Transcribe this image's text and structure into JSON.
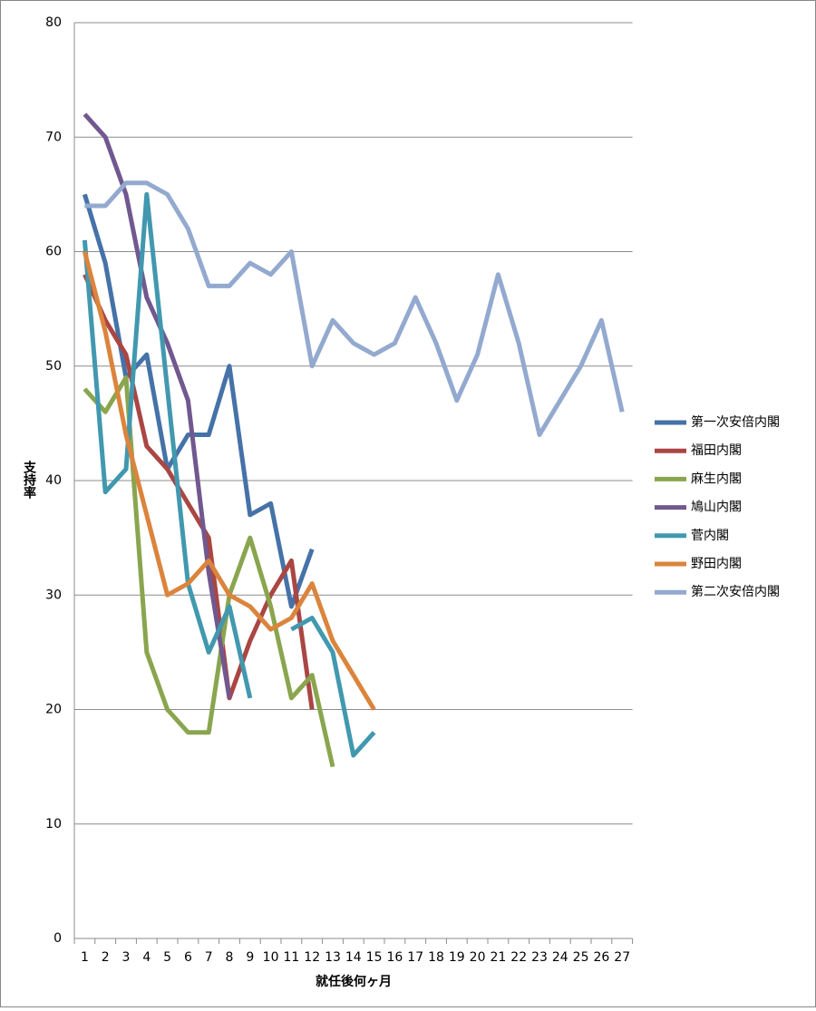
{
  "chart_data": {
    "type": "line",
    "categories": [
      "1",
      "2",
      "3",
      "4",
      "5",
      "6",
      "7",
      "8",
      "9",
      "10",
      "11",
      "12",
      "13",
      "14",
      "15",
      "16",
      "17",
      "18",
      "19",
      "20",
      "21",
      "22",
      "23",
      "24",
      "25",
      "26",
      "27"
    ],
    "x_label": "就任後何ヶ月",
    "y_label": "支持率",
    "ylim": [
      0,
      80
    ],
    "yticks": [
      0,
      10,
      20,
      30,
      40,
      50,
      60,
      70,
      80
    ],
    "grid": true,
    "legend": "right",
    "series": [
      {
        "name": "第一次安倍内閣",
        "color": "#4572a7",
        "values": [
          65,
          59,
          49,
          51,
          41,
          44,
          44,
          50,
          37,
          38,
          29,
          34,
          null,
          null,
          null,
          null,
          null,
          null,
          null,
          null,
          null,
          null,
          null,
          null,
          null,
          null,
          null
        ]
      },
      {
        "name": "福田内閣",
        "color": "#aa4643",
        "values": [
          58,
          54,
          51,
          43,
          41,
          38,
          35,
          21,
          26,
          30,
          33,
          20,
          null,
          null,
          null,
          null,
          null,
          null,
          null,
          null,
          null,
          null,
          null,
          null,
          null,
          null,
          null
        ]
      },
      {
        "name": "麻生内閣",
        "color": "#89a54e",
        "values": [
          48,
          46,
          49,
          25,
          20,
          18,
          18,
          30,
          35,
          29,
          21,
          23,
          15,
          null,
          null,
          null,
          null,
          null,
          null,
          null,
          null,
          null,
          null,
          null,
          null,
          null,
          null
        ]
      },
      {
        "name": "鳩山内閣",
        "color": "#71588f",
        "values": [
          72,
          70,
          65,
          56,
          52,
          47,
          32,
          21,
          null,
          null,
          null,
          null,
          null,
          null,
          null,
          null,
          null,
          null,
          null,
          null,
          null,
          null,
          null,
          null,
          null,
          null,
          null
        ]
      },
      {
        "name": "菅内閣",
        "color": "#4198af",
        "values": [
          61,
          39,
          41,
          65,
          48,
          31,
          25,
          29,
          21,
          null,
          27,
          28,
          25,
          16,
          18,
          null,
          null,
          null,
          null,
          null,
          null,
          null,
          null,
          null,
          null,
          null,
          null
        ]
      },
      {
        "name": "野田内閣",
        "color": "#db843d",
        "values": [
          60,
          53,
          44,
          37,
          30,
          31,
          33,
          30,
          29,
          27,
          28,
          31,
          26,
          23,
          20,
          null,
          null,
          null,
          null,
          null,
          null,
          null,
          null,
          null,
          null,
          null,
          null
        ]
      },
      {
        "name": "第二次安倍内閣",
        "color": "#93a9cf",
        "values": [
          64,
          64,
          66,
          66,
          65,
          62,
          57,
          57,
          59,
          58,
          60,
          50,
          54,
          52,
          51,
          52,
          56,
          52,
          47,
          51,
          58,
          52,
          44,
          47,
          50,
          54,
          46
        ]
      }
    ]
  }
}
